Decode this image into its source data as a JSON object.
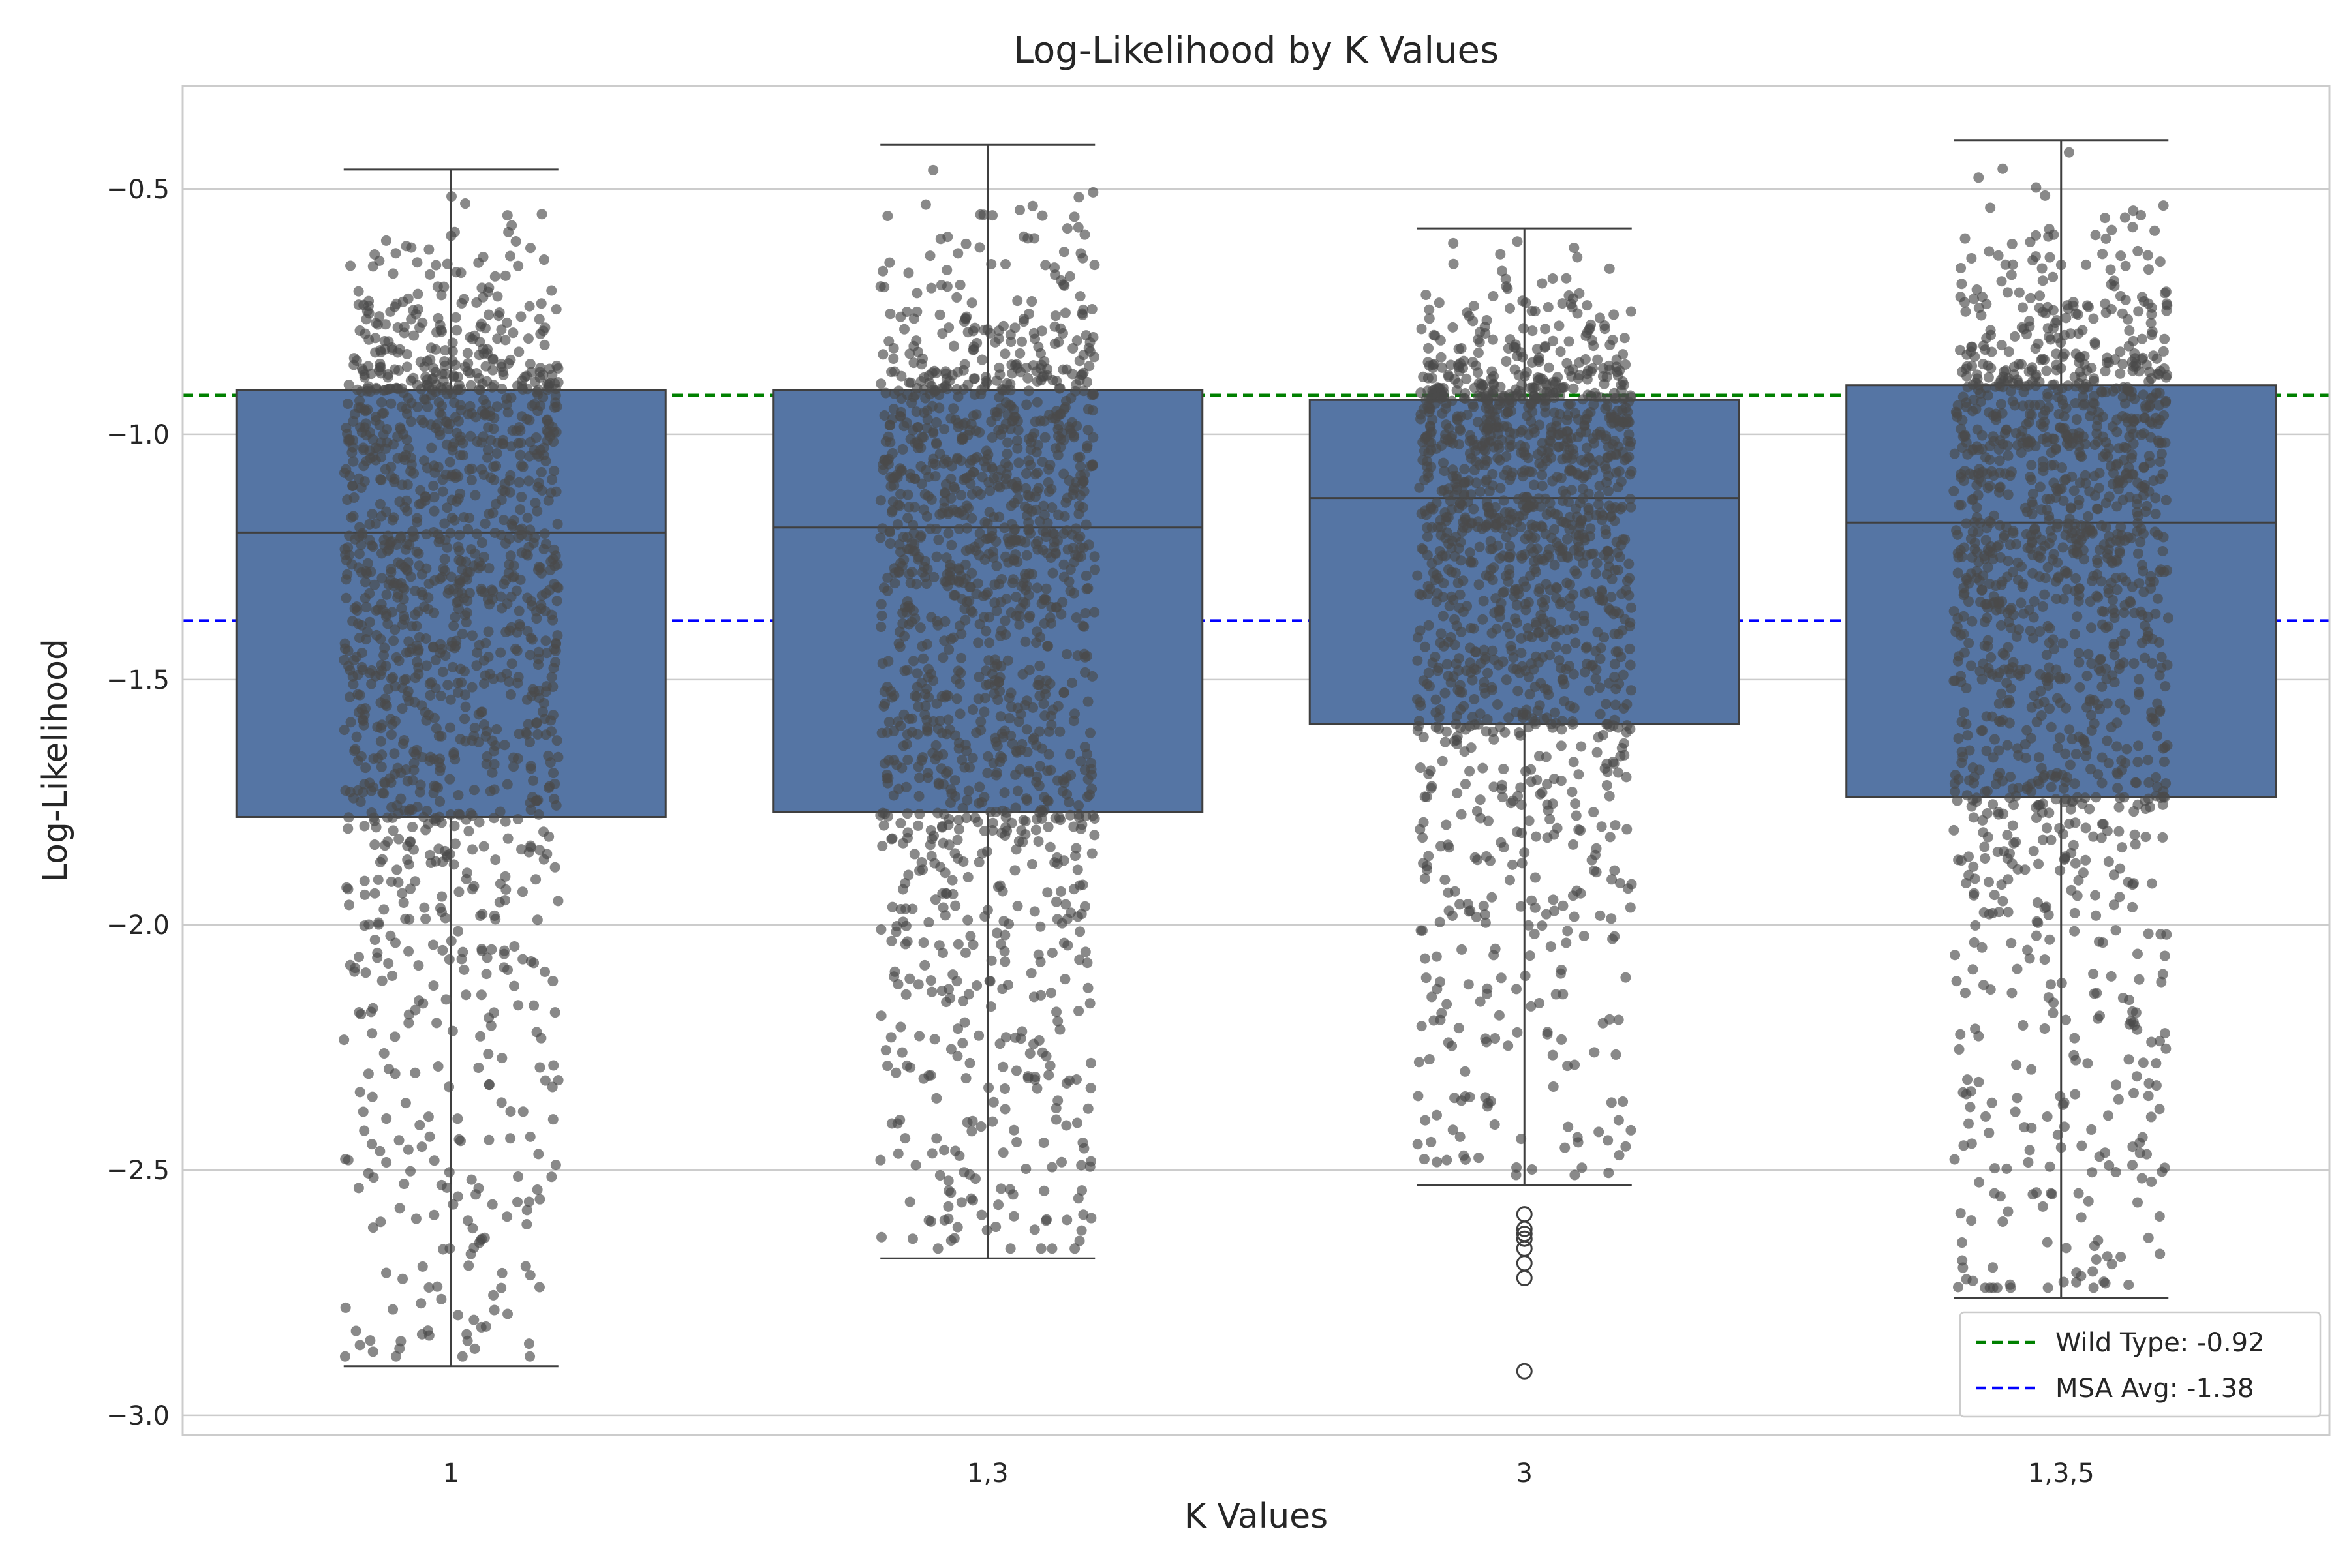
{
  "chart_data": {
    "type": "box",
    "title": "Log-Likelihood by K Values",
    "xlabel": "K Values",
    "ylabel": "Log-Likelihood",
    "categories": [
      "1",
      "1,3",
      "3",
      "1,3,5"
    ],
    "ylim": [
      -3.04,
      -0.29
    ],
    "yticks": [
      -3.0,
      -2.5,
      -2.0,
      -1.5,
      -1.0,
      -0.5
    ],
    "ytick_labels": [
      "−3.0",
      "−2.5",
      "−2.0",
      "−1.5",
      "−1.0",
      "−0.5"
    ],
    "grid": "horizontal",
    "box_color": "#5575a4",
    "point_color": "#4a4a4a",
    "boxes": [
      {
        "category": "1",
        "whisker_low": -2.9,
        "q1": -1.78,
        "median": -1.2,
        "q3": -0.91,
        "whisker_high": -0.46,
        "outliers": []
      },
      {
        "category": "1,3",
        "whisker_low": -2.68,
        "q1": -1.77,
        "median": -1.19,
        "q3": -0.91,
        "whisker_high": -0.41,
        "outliers": []
      },
      {
        "category": "3",
        "whisker_low": -2.53,
        "q1": -1.59,
        "median": -1.13,
        "q3": -0.93,
        "whisker_high": -0.58,
        "outliers": [
          -2.59,
          -2.62,
          -2.63,
          -2.64,
          -2.66,
          -2.69,
          -2.72,
          -2.91
        ]
      },
      {
        "category": "1,3,5",
        "whisker_low": -2.76,
        "q1": -1.74,
        "median": -1.18,
        "q3": -0.9,
        "whisker_high": -0.4,
        "outliers": []
      }
    ],
    "reference_lines": [
      {
        "label": "Wild Type: -0.92",
        "value": -0.92,
        "color": "#008000"
      },
      {
        "label": "MSA Avg: -1.38",
        "value": -1.38,
        "color": "#0000ff"
      }
    ],
    "legend": {
      "position": "bottom-right"
    }
  }
}
